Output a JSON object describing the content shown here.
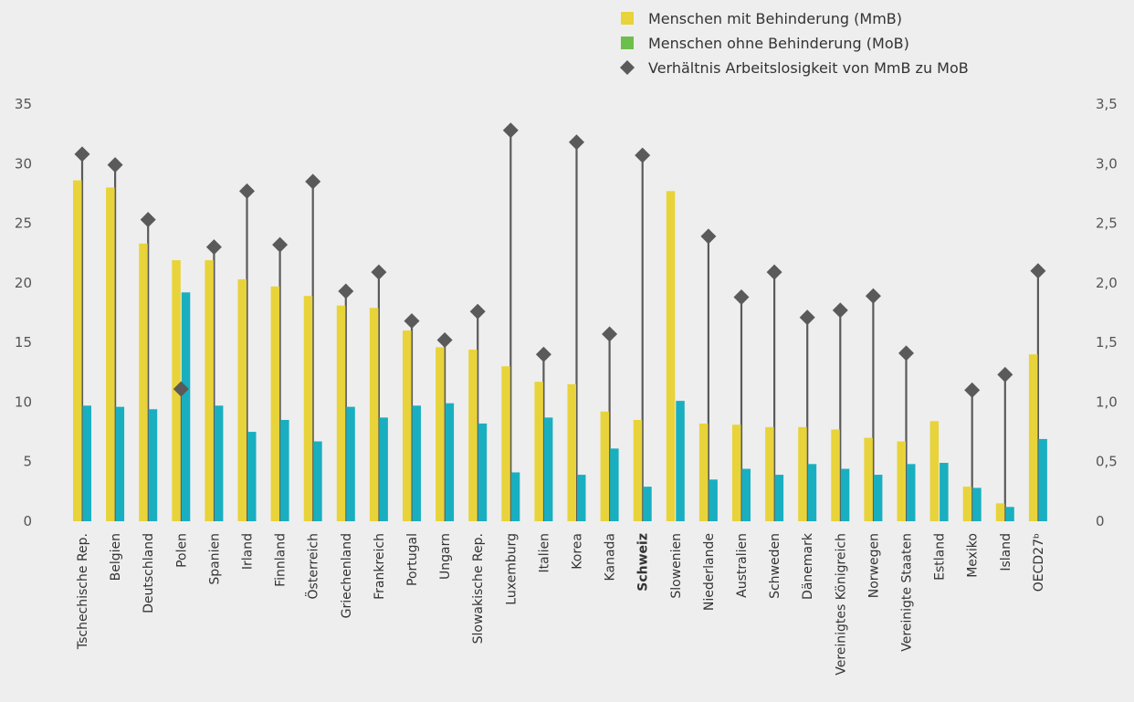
{
  "chart_data": {
    "type": "bar",
    "categories": [
      "Tschechische Rep.",
      "Belgien",
      "Deutschland",
      "Polen",
      "Spanien",
      "Irland",
      "Finnland",
      "Österreich",
      "Griechenland",
      "Frankreich",
      "Portugal",
      "Ungarn",
      "Slowakische Rep.",
      "Luxemburg",
      "Italien",
      "Korea",
      "Kanada",
      "Schweiz",
      "Slowenien",
      "Niederlande",
      "Australien",
      "Schweden",
      "Dänemark",
      "Vereinigtes Königreich",
      "Norwegen",
      "Vereinigte Staaten",
      "Estland",
      "Mexiko",
      "Island",
      "OECD27ᵇ"
    ],
    "highlight_category": "Schweiz",
    "series": [
      {
        "name": "Menschen mit Behinderung (MmB)",
        "type": "bar",
        "axis": "left",
        "color": "#e8d33a",
        "values": [
          28.6,
          28.0,
          23.3,
          21.9,
          21.9,
          20.3,
          19.7,
          18.9,
          18.1,
          17.9,
          16.0,
          14.6,
          14.4,
          13.0,
          11.7,
          11.5,
          9.2,
          8.5,
          27.7,
          8.2,
          8.1,
          7.9,
          7.9,
          7.7,
          7.0,
          6.7,
          8.4,
          2.9,
          1.5,
          14.0
        ]
      },
      {
        "name": "Menschen ohne Behinderung (MoB)",
        "type": "bar",
        "axis": "left",
        "color": "#1aafc0",
        "values": [
          9.7,
          9.6,
          9.4,
          19.2,
          9.7,
          7.5,
          8.5,
          6.7,
          9.6,
          8.7,
          9.7,
          9.9,
          8.2,
          4.1,
          8.7,
          3.9,
          6.1,
          2.9,
          10.1,
          3.5,
          4.4,
          3.9,
          4.8,
          4.4,
          3.9,
          4.8,
          4.9,
          2.8,
          1.2,
          6.9
        ]
      },
      {
        "name": "Verhältnis Arbeitslosigkeit von MmB zu MoB",
        "type": "scatter",
        "marker": "diamond",
        "axis": "right",
        "color": "#5a5a5a",
        "values": [
          3.08,
          2.99,
          2.53,
          1.11,
          2.3,
          2.77,
          2.32,
          2.85,
          1.93,
          2.09,
          1.68,
          1.52,
          1.76,
          3.28,
          1.4,
          3.18,
          1.57,
          3.07,
          null,
          2.39,
          1.88,
          2.09,
          1.71,
          1.77,
          1.89,
          1.41,
          null,
          1.1,
          1.23,
          2.1
        ]
      }
    ],
    "legend_swatch_colors": [
      "#e8d33a",
      "#6bbf4a",
      "#5a5a5a"
    ],
    "legend_position": "top-right",
    "y_left": {
      "min": 0,
      "max": 35,
      "ticks": [
        "0",
        "5",
        "10",
        "15",
        "20",
        "25",
        "30",
        "35"
      ]
    },
    "y_right": {
      "min": 0,
      "max": 3.5,
      "ticks": [
        "0",
        "0,5",
        "1,0",
        "1,5",
        "2,0",
        "2,5",
        "3,0",
        "3,5"
      ]
    },
    "grid": false,
    "background": "#eeeeee"
  }
}
